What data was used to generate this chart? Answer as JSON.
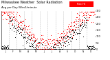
{
  "title": "Milwaukee Weather  Solar Radiation",
  "subtitle": "Avg per Day W/m2/minute",
  "background_color": "#ffffff",
  "plot_bg_color": "#ffffff",
  "y_min": 0,
  "y_max": 300,
  "grid_color": "#bbbbbb",
  "dot_color_red": "#ff0000",
  "dot_color_black": "#000000",
  "legend_box_color": "#ff0000",
  "legend_text": "Rec Hi",
  "n_points": 365,
  "n_years": 1,
  "n_grids": 12,
  "title_fontsize": 3.5,
  "subtitle_fontsize": 2.8,
  "tick_fontsize": 2.2,
  "ytick_fontsize": 2.5
}
